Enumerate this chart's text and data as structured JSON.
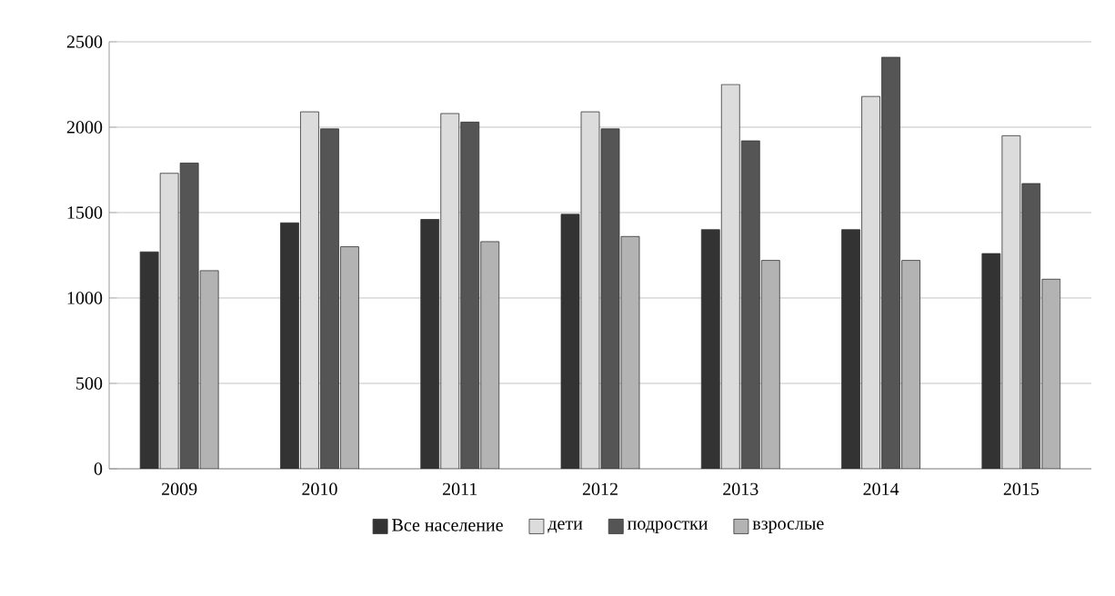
{
  "chart_data": {
    "type": "bar",
    "categories": [
      "2009",
      "2010",
      "2011",
      "2012",
      "2013",
      "2014",
      "2015"
    ],
    "series": [
      {
        "name": "Все население",
        "color": "#333333",
        "values": [
          1270,
          1440,
          1460,
          1490,
          1400,
          1400,
          1260
        ]
      },
      {
        "name": "дети",
        "color": "#dcdcdc",
        "values": [
          1730,
          2090,
          2080,
          2090,
          2250,
          2180,
          1950
        ]
      },
      {
        "name": "подростки",
        "color": "#555555",
        "values": [
          1790,
          1990,
          2030,
          1990,
          1920,
          2410,
          1670
        ]
      },
      {
        "name": "взрослые",
        "color": "#b3b3b3",
        "values": [
          1160,
          1300,
          1330,
          1360,
          1220,
          1220,
          1110
        ]
      }
    ],
    "ylim": [
      0,
      2500
    ],
    "yticks": [
      0,
      500,
      1000,
      1500,
      2000,
      2500
    ],
    "grid": "y",
    "legend": "bottom"
  }
}
